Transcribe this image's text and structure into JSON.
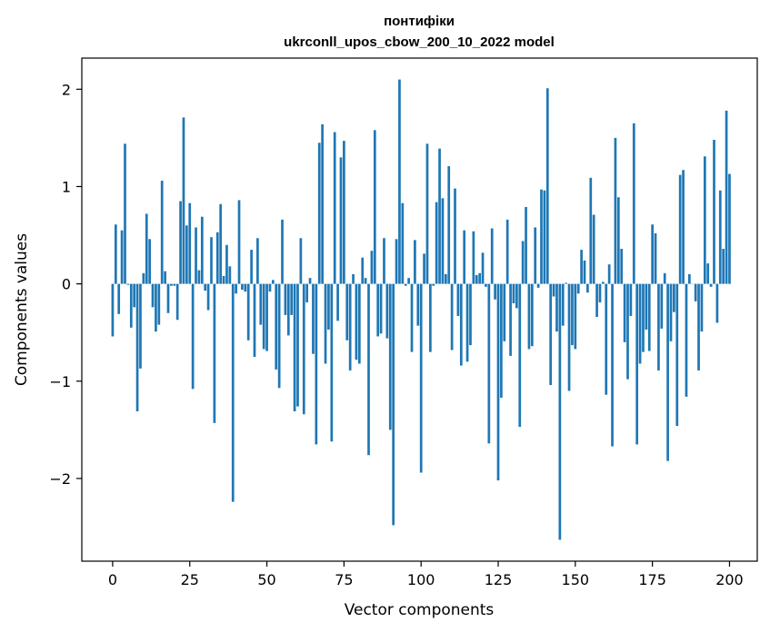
{
  "chart_data": {
    "type": "bar",
    "title_line1": "понтифіки",
    "title_line2": "ukrconll_upos_cbow_200_10_2022 model",
    "xlabel": "Vector components",
    "ylabel": "Components values",
    "xlim": [
      -10,
      209
    ],
    "ylim": [
      -2.85,
      2.32
    ],
    "xticks": [
      0,
      25,
      50,
      75,
      100,
      125,
      150,
      175,
      200
    ],
    "xtick_labels": [
      "0",
      "25",
      "50",
      "75",
      "100",
      "125",
      "150",
      "175",
      "200"
    ],
    "yticks": [
      2,
      1,
      0,
      -1,
      -2
    ],
    "ytick_labels": [
      "2",
      "1",
      "0",
      "−1",
      "−2"
    ],
    "bar_color": "#1f77b4",
    "values": [
      -0.54,
      0.61,
      -0.31,
      0.55,
      1.44,
      -0.01,
      -0.45,
      -0.24,
      -1.31,
      -0.87,
      0.11,
      0.72,
      0.46,
      -0.24,
      -0.49,
      -0.42,
      1.06,
      0.13,
      -0.3,
      -0.02,
      -0.02,
      -0.37,
      0.85,
      1.71,
      0.6,
      0.83,
      -1.08,
      0.58,
      0.14,
      0.69,
      -0.07,
      -0.27,
      0.48,
      -1.43,
      0.53,
      0.82,
      0.08,
      0.4,
      0.18,
      -2.24,
      -0.1,
      0.86,
      -0.06,
      -0.08,
      -0.58,
      0.35,
      -0.75,
      0.47,
      -0.42,
      -0.67,
      -0.69,
      -0.08,
      0.04,
      -0.88,
      -1.07,
      0.66,
      -0.32,
      -0.53,
      -0.32,
      -1.31,
      -1.26,
      0.47,
      -1.34,
      -0.19,
      0.06,
      -0.72,
      -1.65,
      1.45,
      1.64,
      -0.82,
      -0.47,
      -1.62,
      1.56,
      -0.38,
      1.3,
      1.47,
      -0.58,
      -0.89,
      0.1,
      -0.78,
      -0.82,
      0.27,
      0.06,
      -1.76,
      0.34,
      1.58,
      -0.54,
      -0.51,
      0.47,
      -0.56,
      -1.5,
      -2.48,
      0.46,
      2.1,
      0.83,
      -0.02,
      0.06,
      -0.7,
      0.45,
      -0.43,
      -1.94,
      0.31,
      1.44,
      -0.7,
      -0.02,
      0.84,
      1.39,
      0.88,
      0.1,
      1.21,
      -0.68,
      0.98,
      -0.33,
      -0.84,
      0.55,
      -0.8,
      -0.63,
      0.54,
      0.09,
      0.11,
      0.32,
      -0.03,
      -1.64,
      0.57,
      -0.16,
      -2.02,
      -1.17,
      -0.59,
      0.66,
      -0.74,
      -0.2,
      -0.25,
      -1.47,
      0.44,
      0.79,
      -0.67,
      -0.64,
      0.58,
      -0.04,
      0.97,
      0.96,
      2.01,
      -1.04,
      -0.13,
      -0.49,
      -2.63,
      -0.43,
      0.01,
      -1.1,
      -0.63,
      -0.67,
      -0.1,
      0.35,
      0.24,
      -0.09,
      1.09,
      0.71,
      -0.34,
      -0.19,
      0.02,
      -1.14,
      0.2,
      -1.67,
      1.5,
      0.89,
      0.36,
      -0.6,
      -0.98,
      -0.33,
      1.65,
      -1.65,
      -0.82,
      -0.7,
      -0.47,
      -0.69,
      0.61,
      0.52,
      -0.89,
      -0.46,
      0.11,
      -1.82,
      -0.59,
      -0.29,
      -1.46,
      1.12,
      1.17,
      -1.16,
      0.1,
      0.0,
      -0.18,
      -0.89,
      -0.49,
      1.31,
      0.21,
      -0.03,
      1.48,
      -0.4,
      0.96,
      0.36,
      1.78,
      1.13
    ]
  }
}
